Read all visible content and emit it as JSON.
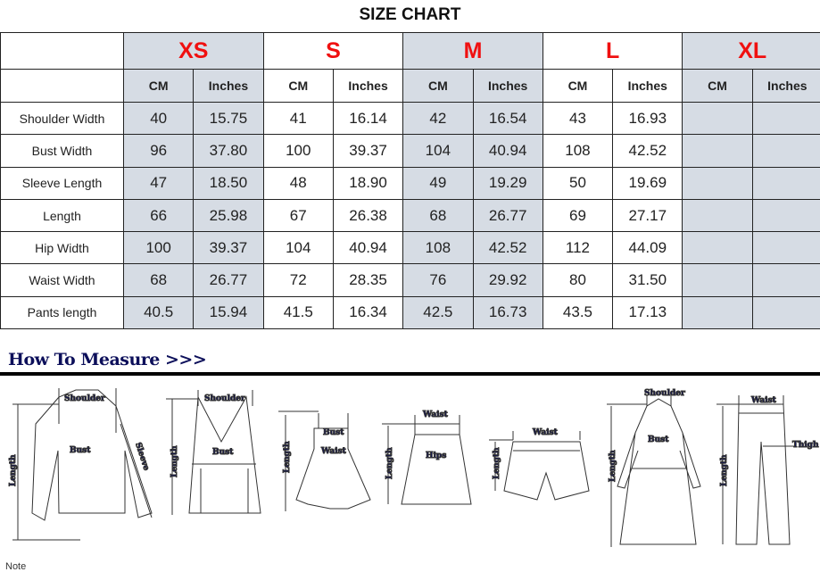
{
  "title": "SIZE CHART",
  "sizes": [
    "XS",
    "S",
    "M",
    "L",
    "XL"
  ],
  "units": {
    "cm": "CM",
    "in": "Inches"
  },
  "rows": [
    {
      "label": "Shoulder Width",
      "values": [
        "40",
        "15.75",
        "41",
        "16.14",
        "42",
        "16.54",
        "43",
        "16.93",
        "",
        ""
      ]
    },
    {
      "label": "Bust Width",
      "values": [
        "96",
        "37.80",
        "100",
        "39.37",
        "104",
        "40.94",
        "108",
        "42.52",
        "",
        ""
      ]
    },
    {
      "label": "Sleeve Length",
      "values": [
        "47",
        "18.50",
        "48",
        "18.90",
        "49",
        "19.29",
        "50",
        "19.69",
        "",
        ""
      ]
    },
    {
      "label": "Length",
      "values": [
        "66",
        "25.98",
        "67",
        "26.38",
        "68",
        "26.77",
        "69",
        "27.17",
        "",
        ""
      ]
    },
    {
      "label": "Hip Width",
      "values": [
        "100",
        "39.37",
        "104",
        "40.94",
        "108",
        "42.52",
        "112",
        "44.09",
        "",
        ""
      ]
    },
    {
      "label": "Waist Width",
      "values": [
        "68",
        "26.77",
        "72",
        "28.35",
        "76",
        "29.92",
        "80",
        "31.50",
        "",
        ""
      ]
    },
    {
      "label": "Pants length",
      "values": [
        "40.5",
        "15.94",
        "41.5",
        "16.34",
        "42.5",
        "16.73",
        "43.5",
        "17.13",
        "",
        ""
      ]
    }
  ],
  "how_to_measure": "How To Measure >>>",
  "diagram_labels": {
    "shoulder": "Shoulder",
    "length": "Length",
    "bust": "Bust",
    "sleeve": "Sleeve",
    "waist": "Waist",
    "hips": "Hips",
    "thigh": "Thigh"
  },
  "note": "Note",
  "colors": {
    "size_label": "#f01010",
    "shaded_column": "#d6dce4",
    "heading": "#0c0f5a"
  }
}
